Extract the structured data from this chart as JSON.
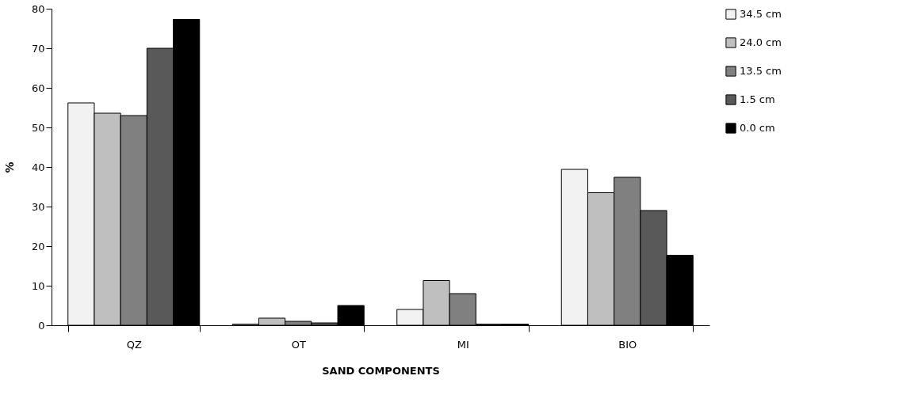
{
  "chart_data": {
    "type": "bar",
    "xlabel": "SAND COMPONENTS",
    "ylabel": "%",
    "categories": [
      "QZ",
      "OT",
      "MI",
      "BIO"
    ],
    "series": [
      {
        "name": "34.5 cm",
        "color": "#f2f2f2",
        "values": [
          56.2,
          0.3,
          4.0,
          39.4
        ]
      },
      {
        "name": "24.0 cm",
        "color": "#bfbfbf",
        "values": [
          53.6,
          1.8,
          11.3,
          33.5
        ]
      },
      {
        "name": "13.5 cm",
        "color": "#808080",
        "values": [
          53.0,
          1.0,
          8.0,
          37.4
        ]
      },
      {
        "name": "1.5 cm",
        "color": "#595959",
        "values": [
          70.0,
          0.6,
          0.3,
          29.0
        ]
      },
      {
        "name": "0.0 cm",
        "color": "#000000",
        "values": [
          77.3,
          5.0,
          0.3,
          17.7
        ]
      }
    ],
    "ylim": [
      0,
      80
    ],
    "yticks": [
      0,
      10,
      20,
      30,
      40,
      50,
      60,
      70,
      80
    ],
    "grid": false,
    "legend": "right"
  }
}
